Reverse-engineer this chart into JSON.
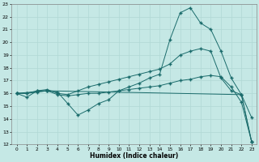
{
  "xlabel": "Humidex (Indice chaleur)",
  "bg_color": "#c5e8e5",
  "line_color": "#1a6b6b",
  "xlim": [
    -0.5,
    23.5
  ],
  "ylim": [
    12,
    23
  ],
  "yticks": [
    12,
    13,
    14,
    15,
    16,
    17,
    18,
    19,
    20,
    21,
    22,
    23
  ],
  "xticks": [
    0,
    1,
    2,
    3,
    4,
    5,
    6,
    7,
    8,
    9,
    10,
    11,
    12,
    13,
    14,
    15,
    16,
    17,
    18,
    19,
    20,
    21,
    22,
    23
  ],
  "line1_x": [
    0,
    1,
    2,
    3,
    4,
    5,
    6,
    7,
    8,
    9,
    10,
    11,
    12,
    13,
    14,
    15,
    16,
    17,
    18,
    19,
    20,
    21,
    22,
    23
  ],
  "line1_y": [
    16.0,
    15.7,
    16.2,
    16.2,
    16.1,
    15.2,
    14.3,
    14.7,
    15.2,
    15.5,
    16.2,
    16.5,
    16.8,
    17.2,
    17.5,
    20.2,
    22.3,
    22.7,
    21.5,
    21.0,
    19.3,
    17.2,
    15.9,
    14.1
  ],
  "line2_x": [
    0,
    1,
    2,
    3,
    4,
    5,
    6,
    7,
    8,
    9,
    10,
    11,
    12,
    13,
    14,
    15,
    16,
    17,
    18,
    19,
    20,
    21,
    22,
    23
  ],
  "line2_y": [
    16.0,
    16.0,
    16.2,
    16.3,
    16.0,
    15.9,
    16.2,
    16.5,
    16.7,
    16.9,
    17.1,
    17.3,
    17.5,
    17.7,
    17.9,
    18.3,
    19.0,
    19.3,
    19.5,
    19.3,
    17.2,
    16.2,
    15.9,
    12.2
  ],
  "line3_x": [
    0,
    1,
    2,
    3,
    4,
    5,
    6,
    7,
    8,
    9,
    10,
    11,
    12,
    13,
    14,
    15,
    16,
    17,
    18,
    19,
    20,
    21,
    22,
    23
  ],
  "line3_y": [
    16.0,
    16.0,
    16.1,
    16.2,
    15.9,
    15.8,
    15.9,
    16.0,
    16.0,
    16.1,
    16.2,
    16.3,
    16.4,
    16.5,
    16.6,
    16.8,
    17.0,
    17.1,
    17.3,
    17.4,
    17.3,
    16.5,
    15.3,
    12.2
  ],
  "line4_x": [
    0,
    3,
    22,
    23
  ],
  "line4_y": [
    16.0,
    16.2,
    15.9,
    12.2
  ]
}
